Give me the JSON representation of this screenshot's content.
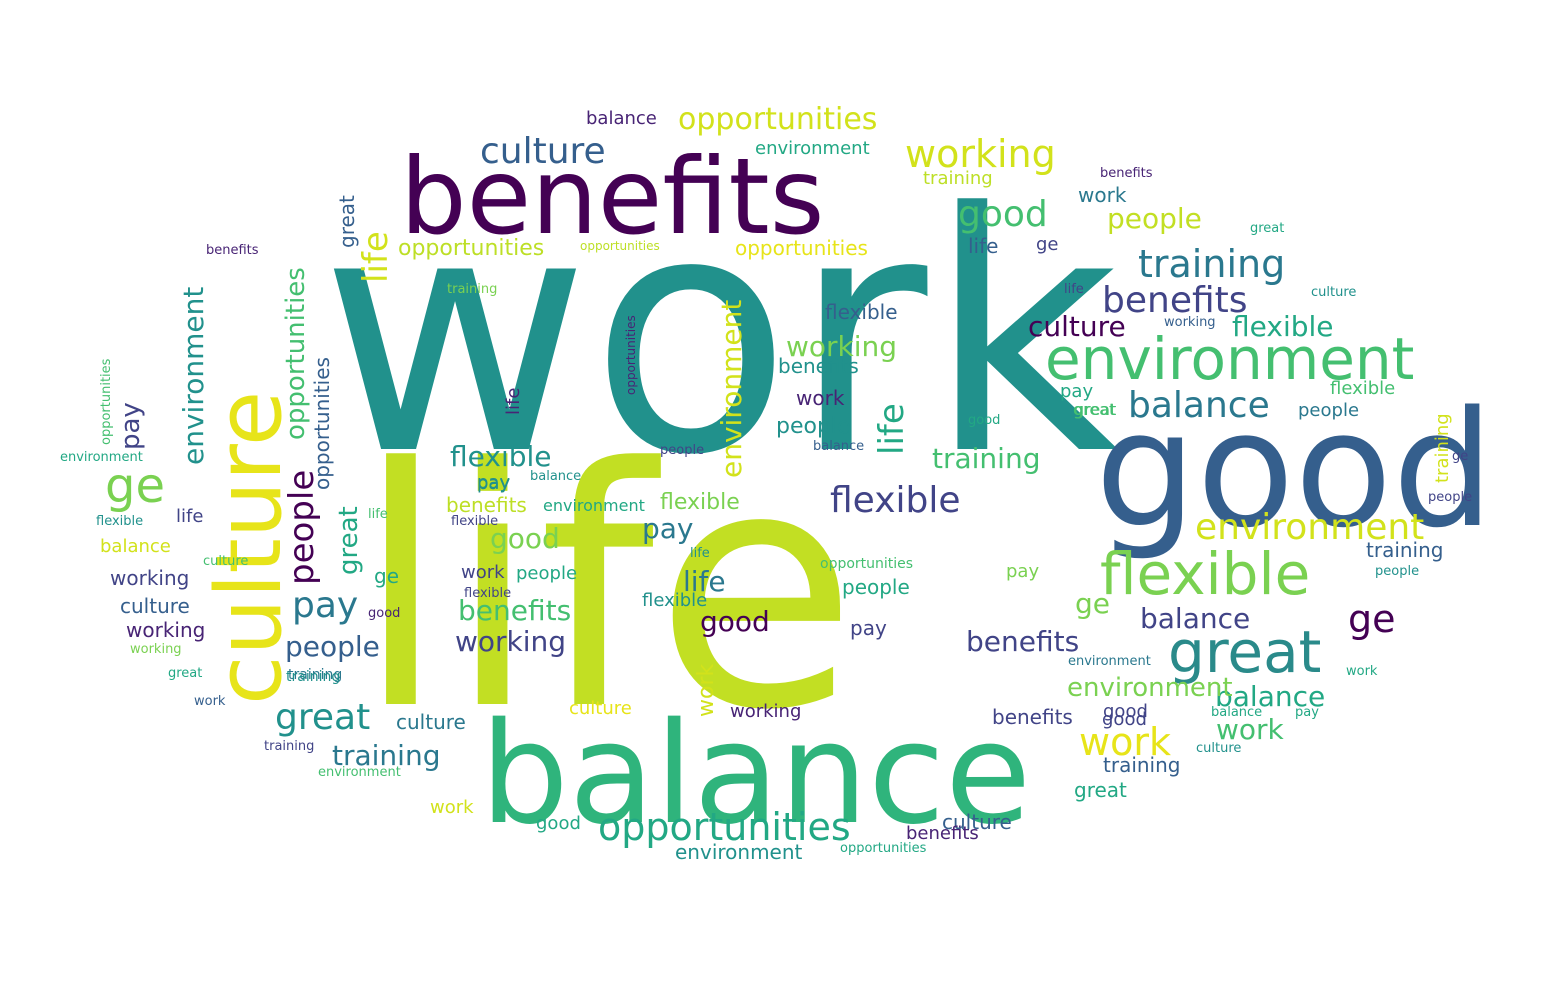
{
  "palette": {
    "c1": "#440154",
    "c2": "#482475",
    "c3": "#414487",
    "c4": "#355f8d",
    "c5": "#2a788e",
    "c6": "#21918c",
    "c7": "#22a884",
    "c8": "#44bf70",
    "c9": "#7ad151",
    "c10": "#bddf26",
    "c11": "#d2e21b",
    "c12": "#e7e419"
  },
  "words": [
    "work",
    "life",
    "balance",
    "good",
    "benefits",
    "culture",
    "environment",
    "flexible",
    "great",
    "training",
    "opportunities",
    "working",
    "people",
    "pay",
    "ge",
    "balance",
    "benefits",
    "good",
    "flexible",
    "great",
    "training",
    "culture",
    "environment",
    "opportunities",
    "balance",
    "benefits",
    "environment",
    "working",
    "culture",
    "good",
    "people",
    "opportunities",
    "training",
    "opportunities",
    "great",
    "people",
    "opportunities",
    "pay",
    "environment",
    "flexible",
    "flexible",
    "opportunities",
    "pay",
    "flexible",
    "working",
    "ge",
    "ge",
    "working",
    "working",
    "work",
    "benefits",
    "training",
    "work",
    "life",
    "balance",
    "training",
    "environment",
    "work",
    "work",
    "life",
    "opportunities",
    "benefits",
    "life",
    "culture",
    "flexible",
    "culture",
    "great",
    "people",
    "benefits",
    "good",
    "training",
    "pay",
    "benefits",
    "life",
    "flexible",
    "good",
    "opportunities",
    "great",
    "training",
    "environment",
    "culture",
    "pay",
    "people",
    "environment",
    "work",
    "great",
    "people",
    "culture",
    "opportunities",
    "people",
    "flexible",
    "pay",
    "working",
    "work",
    "ge",
    "life",
    "training",
    "good",
    "environment",
    "balance",
    "benefits",
    "opportunities",
    "people",
    "flexible",
    "life",
    "balance",
    "culture",
    "work",
    "training",
    "life",
    "great",
    "good",
    "ge",
    "work",
    "pay",
    "balance",
    "benefits",
    "culture",
    "opportunities",
    "people",
    "working",
    "great",
    "environment",
    "training",
    "pay",
    "good",
    "flexible",
    "balance",
    "culture",
    "work",
    "good",
    "ge",
    "people",
    "life",
    "benefits",
    "environment",
    "opportunities",
    "working",
    "great",
    "flexible",
    "balance",
    "training",
    "pay",
    "life",
    "good"
  ]
}
